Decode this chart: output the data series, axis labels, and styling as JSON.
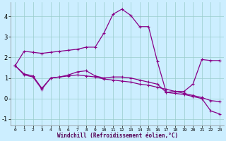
{
  "xlabel": "Windchill (Refroidissement éolien,°C)",
  "background_color": "#cceeff",
  "grid_color": "#99cccc",
  "line_color": "#880088",
  "hours": [
    0,
    1,
    2,
    3,
    4,
    5,
    6,
    7,
    8,
    9,
    10,
    11,
    12,
    13,
    14,
    15,
    16,
    17,
    18,
    19,
    20,
    21,
    22,
    23
  ],
  "temp": [
    1.6,
    2.3,
    2.25,
    2.2,
    2.25,
    2.3,
    2.35,
    2.4,
    2.5,
    2.5,
    3.2,
    4.1,
    4.35,
    4.05,
    3.5,
    3.5,
    1.8,
    0.3,
    0.35,
    0.35,
    0.7,
    1.9,
    1.85,
    1.85
  ],
  "wc1": [
    1.6,
    1.2,
    1.1,
    0.5,
    1.0,
    1.05,
    1.1,
    1.15,
    1.1,
    1.05,
    0.95,
    0.9,
    0.85,
    0.8,
    0.7,
    0.65,
    0.55,
    0.45,
    0.35,
    0.25,
    0.15,
    0.05,
    -0.1,
    -0.15
  ],
  "wc2": [
    1.6,
    1.15,
    1.05,
    0.45,
    1.0,
    1.05,
    1.15,
    1.3,
    1.35,
    1.1,
    1.0,
    1.05,
    1.05,
    1.0,
    0.9,
    0.8,
    0.7,
    0.3,
    0.25,
    0.2,
    0.1,
    0.0,
    -0.6,
    -0.75
  ],
  "ylim": [
    -1.3,
    4.7
  ],
  "xlim": [
    -0.5,
    23.5
  ],
  "yticks": [
    -1,
    0,
    1,
    2,
    3,
    4
  ],
  "xtick_fontsize": 4.5,
  "ytick_fontsize": 6.0,
  "xlabel_fontsize": 5.5,
  "linewidth": 0.9,
  "markersize": 2.5
}
